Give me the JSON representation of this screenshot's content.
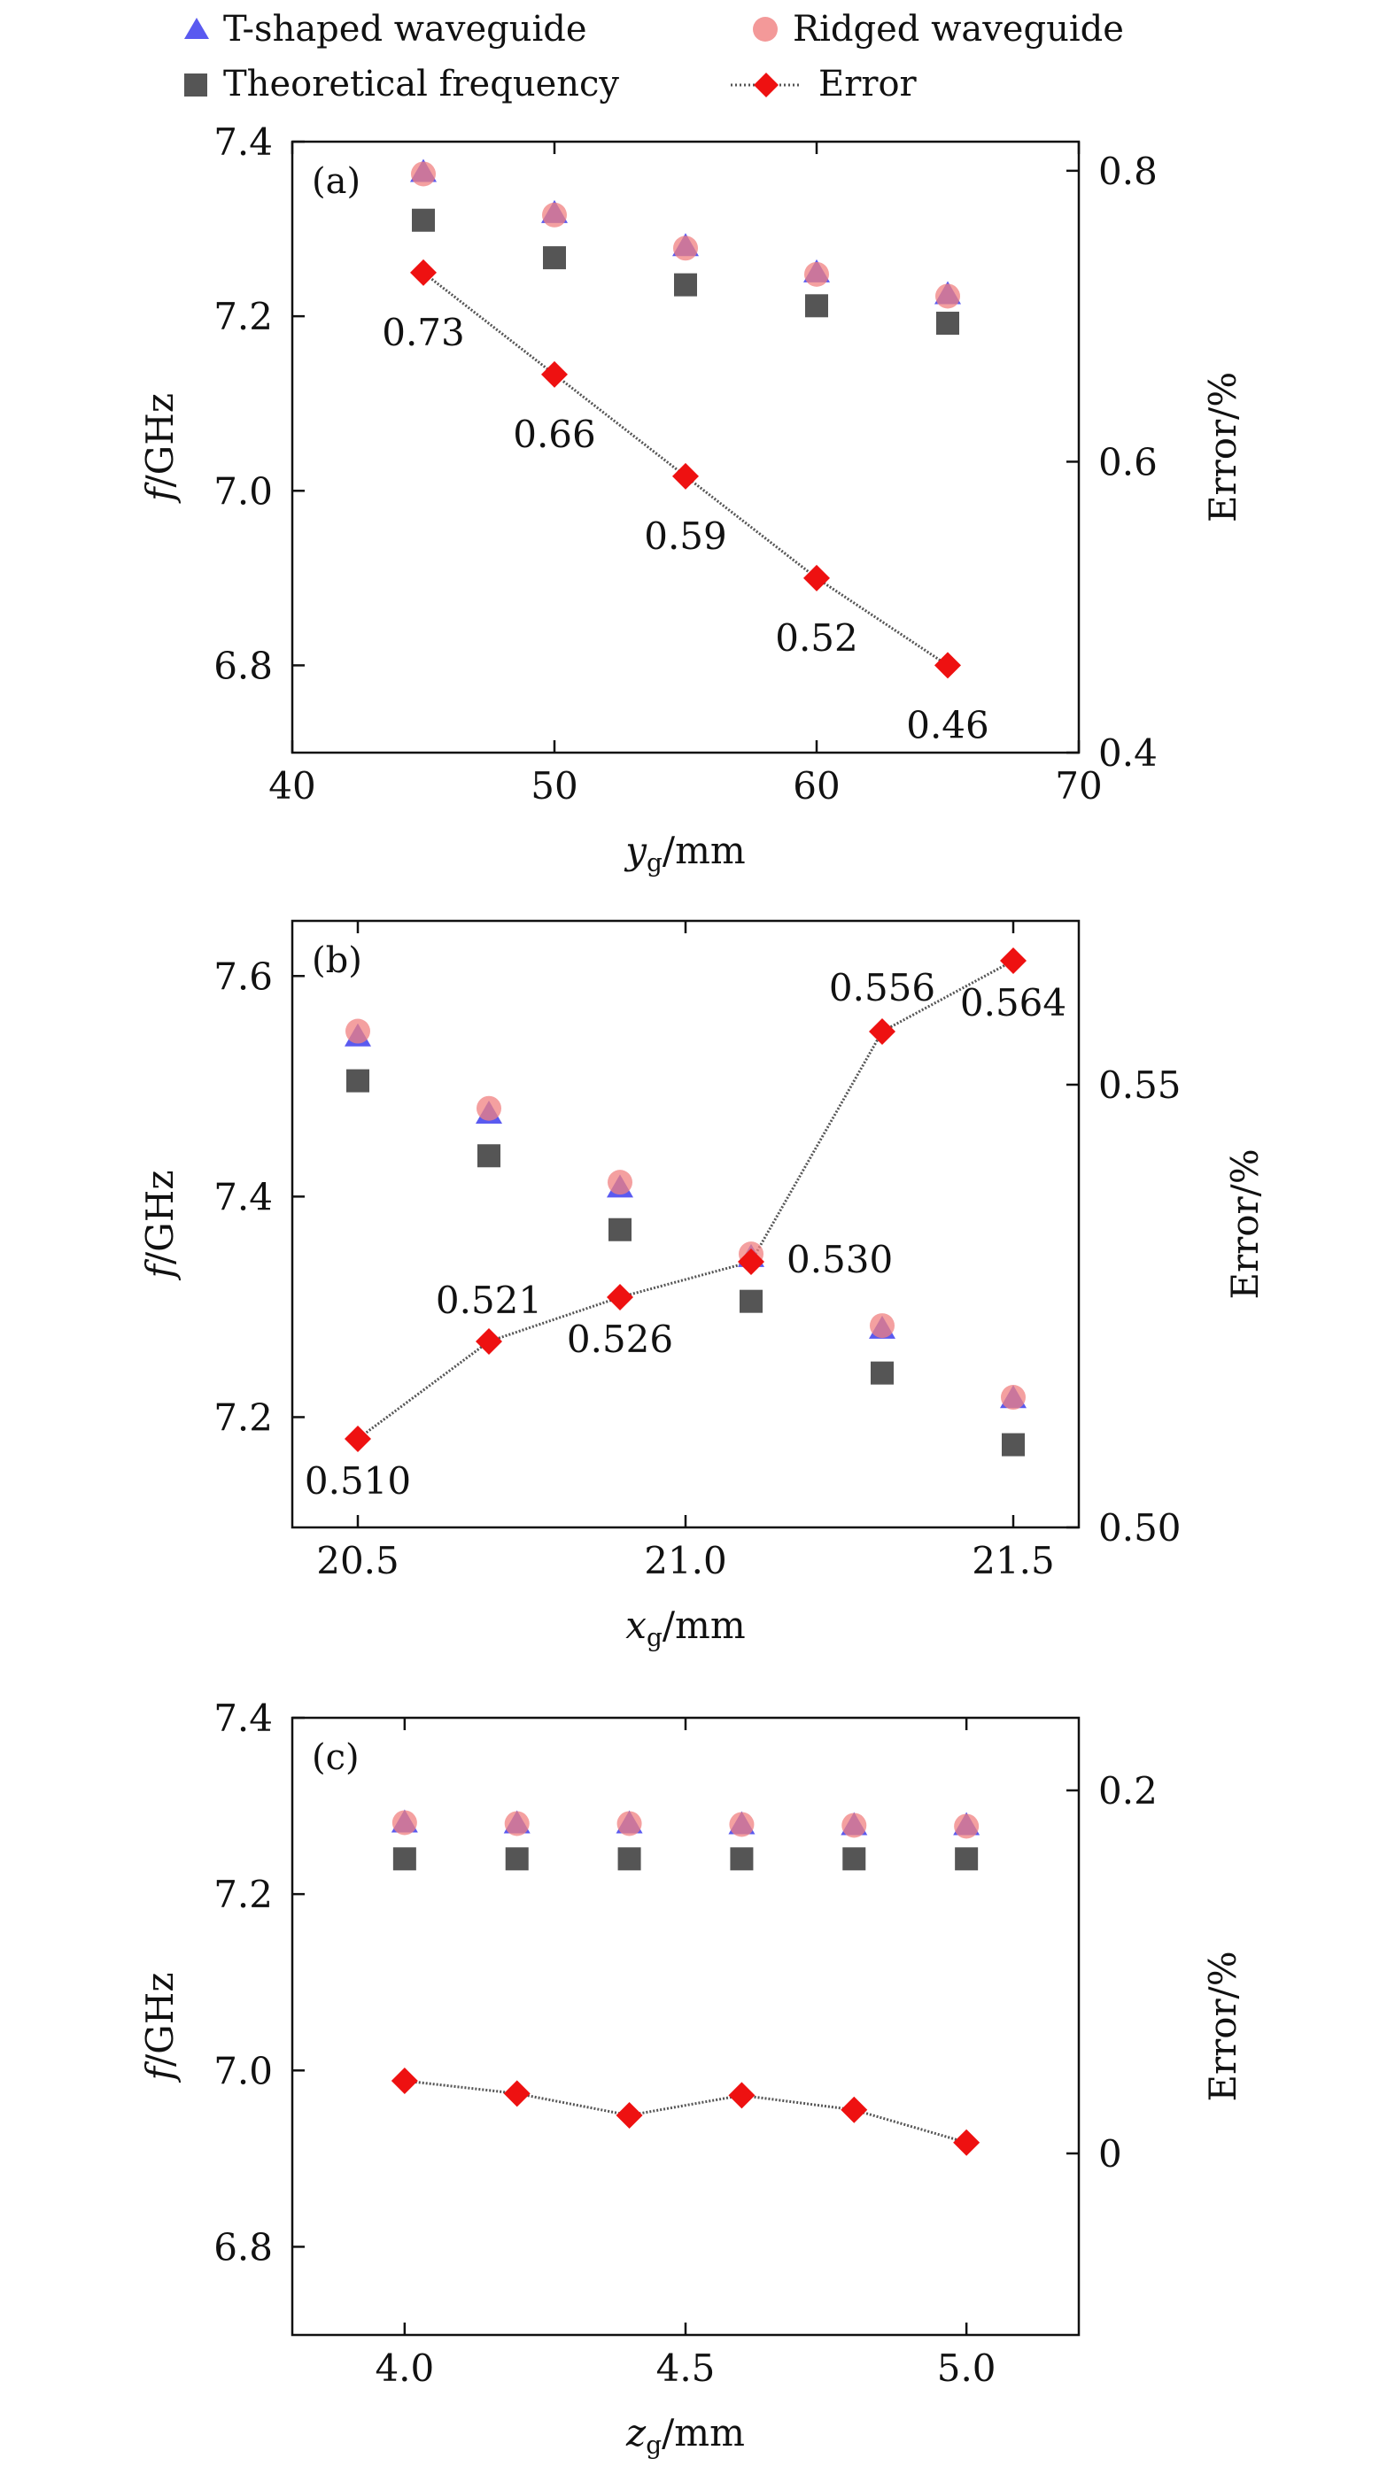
{
  "legend": {
    "items": [
      {
        "label": "T-shaped waveguide",
        "marker": "triangle",
        "color": "#5a5af0"
      },
      {
        "label": "Ridged waveguide",
        "marker": "circle",
        "color": "#f08080"
      },
      {
        "label": "Theoretical frequency",
        "marker": "square",
        "color": "#555555"
      },
      {
        "label": "Error",
        "marker": "diamond-line",
        "color": "#ee1111"
      }
    ]
  },
  "colors": {
    "t_shaped": "#5a5af0",
    "ridged": "#f08080",
    "theoretical": "#555555",
    "error": "#ee1111",
    "error_line": "#555555"
  },
  "chart_data": [
    {
      "type": "scatter",
      "panel_label": "(a)",
      "xlabel_var": "y",
      "xlabel_sub": "g",
      "xlabel_unit": "/mm",
      "ylabel_var": "f",
      "ylabel_unit": "/GHz",
      "y2label": "Error/%",
      "xlim": [
        40,
        70
      ],
      "ylim": [
        6.7,
        7.4
      ],
      "y2lim": [
        0.4,
        0.82
      ],
      "xticks": [
        40,
        50,
        60,
        70
      ],
      "xtick_labels": [
        "40",
        "50",
        "60",
        "70"
      ],
      "yticks": [
        6.8,
        7.0,
        7.2,
        7.4
      ],
      "ytick_labels": [
        "6.8",
        "7.0",
        "7.2",
        "7.4"
      ],
      "y2ticks": [
        0.4,
        0.6,
        0.8
      ],
      "y2tick_labels": [
        "0.4",
        "0.6",
        "0.8"
      ],
      "x": [
        45,
        50,
        55,
        60,
        65
      ],
      "t_shaped": [
        7.365,
        7.318,
        7.28,
        7.25,
        7.225
      ],
      "ridged": [
        7.363,
        7.316,
        7.278,
        7.248,
        7.223
      ],
      "theoretical": [
        7.31,
        7.267,
        7.236,
        7.212,
        7.192
      ],
      "error": [
        0.73,
        0.66,
        0.59,
        0.52,
        0.46
      ],
      "error_labels": [
        "0.73",
        "0.66",
        "0.59",
        "0.52",
        "0.46"
      ],
      "label_pos": [
        "below-left",
        "below-left",
        "below-left",
        "below-left",
        "below-left"
      ]
    },
    {
      "type": "scatter",
      "panel_label": "(b)",
      "xlabel_var": "x",
      "xlabel_sub": "g",
      "xlabel_unit": "/mm",
      "ylabel_var": "f",
      "ylabel_unit": "/GHz",
      "y2label": "Error/%",
      "xlim": [
        20.4,
        21.6
      ],
      "ylim": [
        7.1,
        7.65
      ],
      "y2lim": [
        0.5,
        0.5685
      ],
      "xticks": [
        20.5,
        21.0,
        21.5
      ],
      "xtick_labels": [
        "20.5",
        "21.0",
        "21.5"
      ],
      "yticks": [
        7.2,
        7.4,
        7.6
      ],
      "ytick_labels": [
        "7.2",
        "7.4",
        "7.6"
      ],
      "y2ticks": [
        0.5,
        0.55
      ],
      "y2tick_labels": [
        "0.50",
        "0.55"
      ],
      "x": [
        20.5,
        20.7,
        20.9,
        21.1,
        21.3,
        21.5
      ],
      "t_shaped": [
        7.545,
        7.475,
        7.408,
        7.345,
        7.28,
        7.217
      ],
      "ridged": [
        7.55,
        7.48,
        7.413,
        7.348,
        7.283,
        7.218
      ],
      "theoretical": [
        7.505,
        7.437,
        7.37,
        7.305,
        7.24,
        7.175
      ],
      "error": [
        0.51,
        0.521,
        0.526,
        0.53,
        0.556,
        0.564
      ],
      "error_labels": [
        "0.510",
        "0.521",
        "0.526",
        "0.530",
        "0.556",
        "0.564"
      ],
      "label_pos": [
        "below",
        "above",
        "below",
        "right",
        "above-left",
        "below"
      ]
    },
    {
      "type": "scatter",
      "panel_label": "(c)",
      "xlabel_var": "z",
      "xlabel_sub": "g",
      "xlabel_unit": "/mm",
      "ylabel_var": "f",
      "ylabel_unit": "/GHz",
      "y2label": "Error/%",
      "xlim": [
        3.8,
        5.2
      ],
      "ylim": [
        6.7,
        7.4
      ],
      "y2lim": [
        -0.1,
        0.24
      ],
      "xticks": [
        4.0,
        4.5,
        5.0
      ],
      "xtick_labels": [
        "4.0",
        "4.5",
        "5.0"
      ],
      "yticks": [
        6.8,
        7.0,
        7.2,
        7.4
      ],
      "ytick_labels": [
        "6.8",
        "7.0",
        "7.2",
        "7.4"
      ],
      "y2ticks": [
        0,
        0.2
      ],
      "y2tick_labels": [
        "0",
        "0.2"
      ],
      "x": [
        4.0,
        4.2,
        4.4,
        4.6,
        4.8,
        5.0
      ],
      "t_shaped": [
        7.281,
        7.28,
        7.28,
        7.279,
        7.278,
        7.278
      ],
      "ridged": [
        7.281,
        7.28,
        7.28,
        7.279,
        7.278,
        7.277
      ],
      "theoretical": [
        7.24,
        7.24,
        7.24,
        7.24,
        7.24,
        7.24
      ],
      "error": [
        0.04,
        0.033,
        0.021,
        0.032,
        0.024,
        0.006
      ],
      "error_labels": [],
      "label_pos": []
    }
  ]
}
